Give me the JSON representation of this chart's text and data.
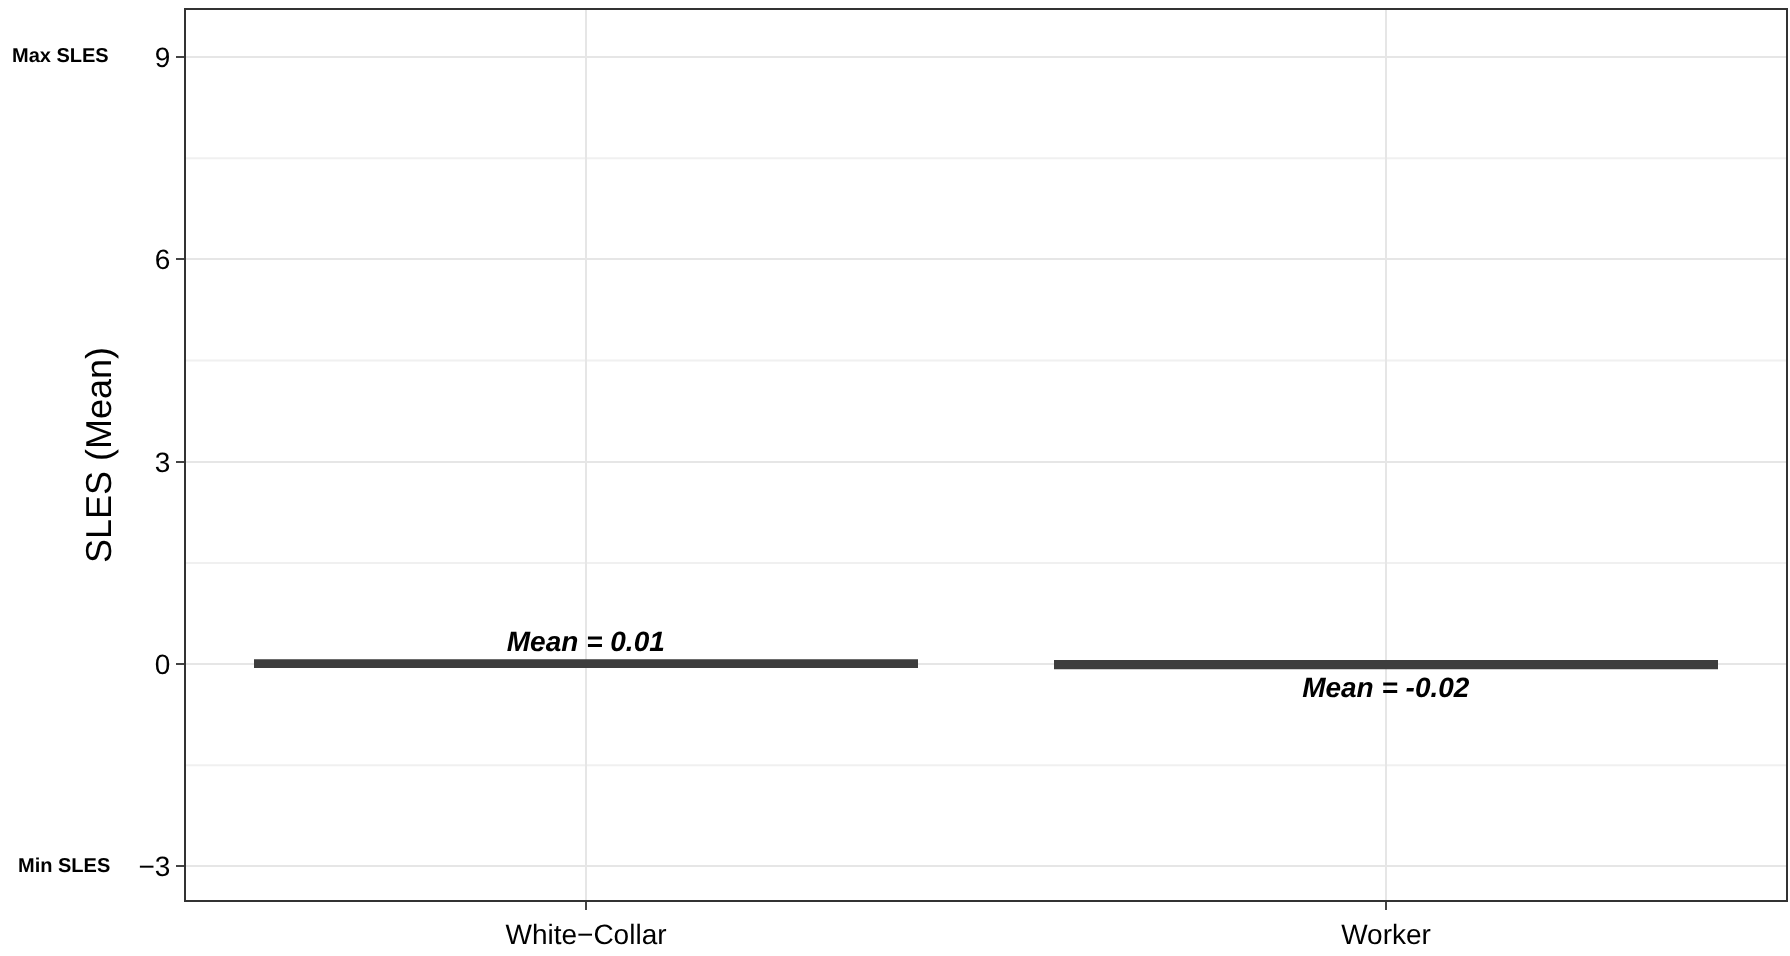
{
  "chart_data": {
    "type": "bar",
    "ylabel": "SLES (Mean)",
    "categories": [
      "White−Collar",
      "Worker"
    ],
    "values": [
      0.01,
      -0.02
    ],
    "colors": [
      "#3d3d3d",
      "#3d3d3d"
    ],
    "value_labels": [
      "Mean = 0.01",
      "Mean = -0.02"
    ],
    "ylim": [
      -3.5,
      9.7
    ],
    "yticks": [
      {
        "value": -3,
        "label": "−3"
      },
      0,
      3,
      6,
      9
    ],
    "grid": true,
    "annotations": [
      "Max SLES",
      "Min SLES"
    ]
  }
}
